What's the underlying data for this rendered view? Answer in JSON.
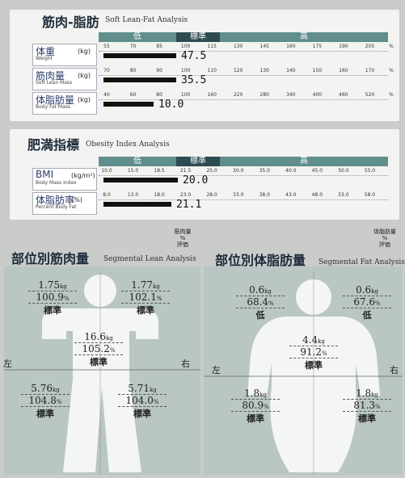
{
  "soft_lean_fat": {
    "title": "筋肉-脂肪",
    "subtitle": "Soft Lean-Fat Analysis",
    "ranges": [
      "低",
      "標準",
      "高"
    ],
    "rows": [
      {
        "label": "体重",
        "sublabel": "Weight",
        "unit": "(kg)",
        "scale": [
          "55",
          "70",
          "85",
          "100",
          "115",
          "130",
          "145",
          "160",
          "175",
          "190",
          "205"
        ],
        "scale_unit": "%",
        "value": "47.5"
      },
      {
        "label": "筋肉量",
        "sublabel": "Soft Lean Mass",
        "unit": "(kg)",
        "scale": [
          "70",
          "80",
          "90",
          "100",
          "110",
          "120",
          "130",
          "140",
          "150",
          "160",
          "170"
        ],
        "scale_unit": "%",
        "value": "35.5"
      },
      {
        "label": "体脂肪量",
        "sublabel": "Body Fat Mass",
        "unit": "(kg)",
        "scale": [
          "40",
          "60",
          "80",
          "100",
          "160",
          "220",
          "280",
          "340",
          "400",
          "460",
          "520"
        ],
        "scale_unit": "%",
        "value": "10.0"
      }
    ]
  },
  "obesity": {
    "title": "肥満指標",
    "subtitle": "Obesity Index Analysis",
    "ranges": [
      "低",
      "標準",
      "高"
    ],
    "rows": [
      {
        "label": "BMI",
        "sublabel": "Body Mass Index",
        "unit": "(kg/m²)",
        "scale": [
          "10.0",
          "15.0",
          "18.5",
          "21.5",
          "25.0",
          "30.0",
          "35.0",
          "40.0",
          "45.0",
          "50.0",
          "55.0"
        ],
        "value": "20.0"
      },
      {
        "label": "体脂肪率",
        "sublabel": "Percent Body Fat",
        "unit": "(%)",
        "scale": [
          "8.0",
          "13.0",
          "18.0",
          "23.0",
          "28.0",
          "33.0",
          "38.0",
          "43.0",
          "48.0",
          "53.0",
          "58.0"
        ],
        "value": "21.1"
      }
    ]
  },
  "segmental_lean": {
    "title": "部位別筋肉量",
    "subtitle": "Segmental Lean Analysis",
    "legend": [
      "筋肉量",
      "%",
      "評価"
    ],
    "left": "左",
    "right": "右",
    "segments": [
      {
        "mass": "1.75",
        "mass_unit": "kg",
        "percent": "100.9",
        "percent_unit": "%",
        "rating": "標準"
      },
      {
        "mass": "1.77",
        "mass_unit": "kg",
        "percent": "102.1",
        "percent_unit": "%",
        "rating": "標準"
      },
      {
        "mass": "16.6",
        "mass_unit": "kg",
        "percent": "105.2",
        "percent_unit": "%",
        "rating": "標準"
      },
      {
        "mass": "5.76",
        "mass_unit": "kg",
        "percent": "104.8",
        "percent_unit": "%",
        "rating": "標準"
      },
      {
        "mass": "5.71",
        "mass_unit": "kg",
        "percent": "104.0",
        "percent_unit": "%",
        "rating": "標準"
      }
    ]
  },
  "segmental_fat": {
    "title": "部位別体脂肪量",
    "subtitle": "Segmental Fat Analysis",
    "legend": [
      "体脂肪量",
      "%",
      "評価"
    ],
    "left": "左",
    "right": "右",
    "segments": [
      {
        "mass": "0.6",
        "mass_unit": "kg",
        "percent": "68.4",
        "percent_unit": "%",
        "rating": "低"
      },
      {
        "mass": "0.6",
        "mass_unit": "kg",
        "percent": "67.6",
        "percent_unit": "%",
        "rating": "低"
      },
      {
        "mass": "4.4",
        "mass_unit": "kg",
        "percent": "91.2",
        "percent_unit": "%",
        "rating": "標準"
      },
      {
        "mass": "1.8",
        "mass_unit": "kg",
        "percent": "80.9",
        "percent_unit": "%",
        "rating": "標準"
      },
      {
        "mass": "1.8",
        "mass_unit": "kg",
        "percent": "81.3",
        "percent_unit": "%",
        "rating": "標準"
      }
    ]
  }
}
